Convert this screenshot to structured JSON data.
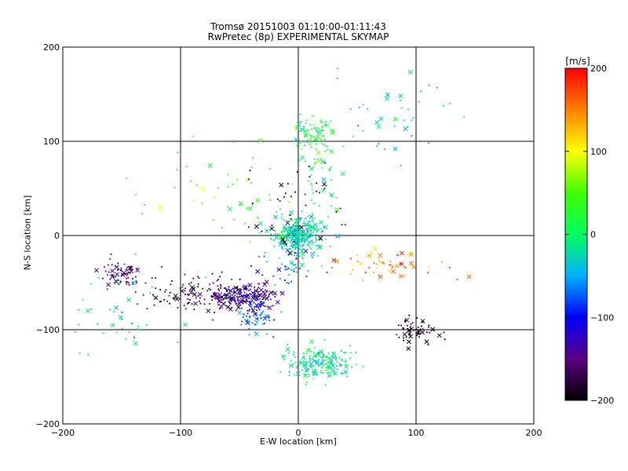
{
  "chart_data": {
    "type": "scatter",
    "title": "Tromsø 20151003 01:10:00-01:11:43",
    "subtitle": "RwPretec (8p) EXPERIMENTAL SKYMAP",
    "xlabel": "E-W location [km]",
    "ylabel": "N-S location [km]",
    "xlim": [
      -200,
      200
    ],
    "ylim": [
      -200,
      200
    ],
    "xticks": [
      -200,
      -100,
      0,
      100,
      200
    ],
    "yticks": [
      -200,
      -100,
      0,
      100,
      200
    ],
    "grid": true,
    "colorbar": {
      "label": "[m/s]",
      "range": [
        -200,
        200
      ],
      "ticks": [
        200,
        100,
        0,
        -100,
        -200
      ],
      "colormap": "rainbow"
    },
    "clusters": [
      {
        "x": 0,
        "y": 0,
        "sx": 10,
        "sy": 10,
        "velocity": -20,
        "count": 320
      },
      {
        "x": 18,
        "y": -135,
        "sx": 13,
        "sy": 9,
        "velocity": -10,
        "count": 200
      },
      {
        "x": -45,
        "y": -65,
        "sx": 12,
        "sy": 7,
        "velocity": -135,
        "count": 180
      },
      {
        "x": -75,
        "y": -62,
        "sx": 25,
        "sy": 9,
        "velocity": -175,
        "count": 150
      },
      {
        "x": -150,
        "y": -42,
        "sx": 9,
        "sy": 7,
        "velocity": -150,
        "count": 70
      },
      {
        "x": 15,
        "y": 110,
        "sx": 9,
        "sy": 9,
        "velocity": 10,
        "count": 80
      },
      {
        "x": 100,
        "y": -102,
        "sx": 9,
        "sy": 7,
        "velocity": -195,
        "count": 60
      },
      {
        "x": -35,
        "y": -85,
        "sx": 9,
        "sy": 10,
        "velocity": -70,
        "count": 60
      },
      {
        "x": 75,
        "y": -30,
        "sx": 22,
        "sy": 8,
        "velocity": 150,
        "count": 60
      },
      {
        "x": -65,
        "y": 40,
        "sx": 35,
        "sy": 35,
        "velocity": 40,
        "count": 60
      },
      {
        "x": -5,
        "y": -25,
        "sx": 10,
        "sy": 15,
        "velocity": -65,
        "count": 60
      },
      {
        "x": 18,
        "y": 70,
        "sx": 8,
        "sy": 25,
        "velocity": 10,
        "count": 40
      },
      {
        "x": 85,
        "y": 125,
        "sx": 25,
        "sy": 25,
        "velocity": -30,
        "count": 40
      },
      {
        "x": -160,
        "y": -90,
        "sx": 25,
        "sy": 20,
        "velocity": -20,
        "count": 40
      },
      {
        "x": -10,
        "y": 30,
        "sx": 25,
        "sy": 25,
        "velocity": -190,
        "count": 40
      }
    ]
  }
}
